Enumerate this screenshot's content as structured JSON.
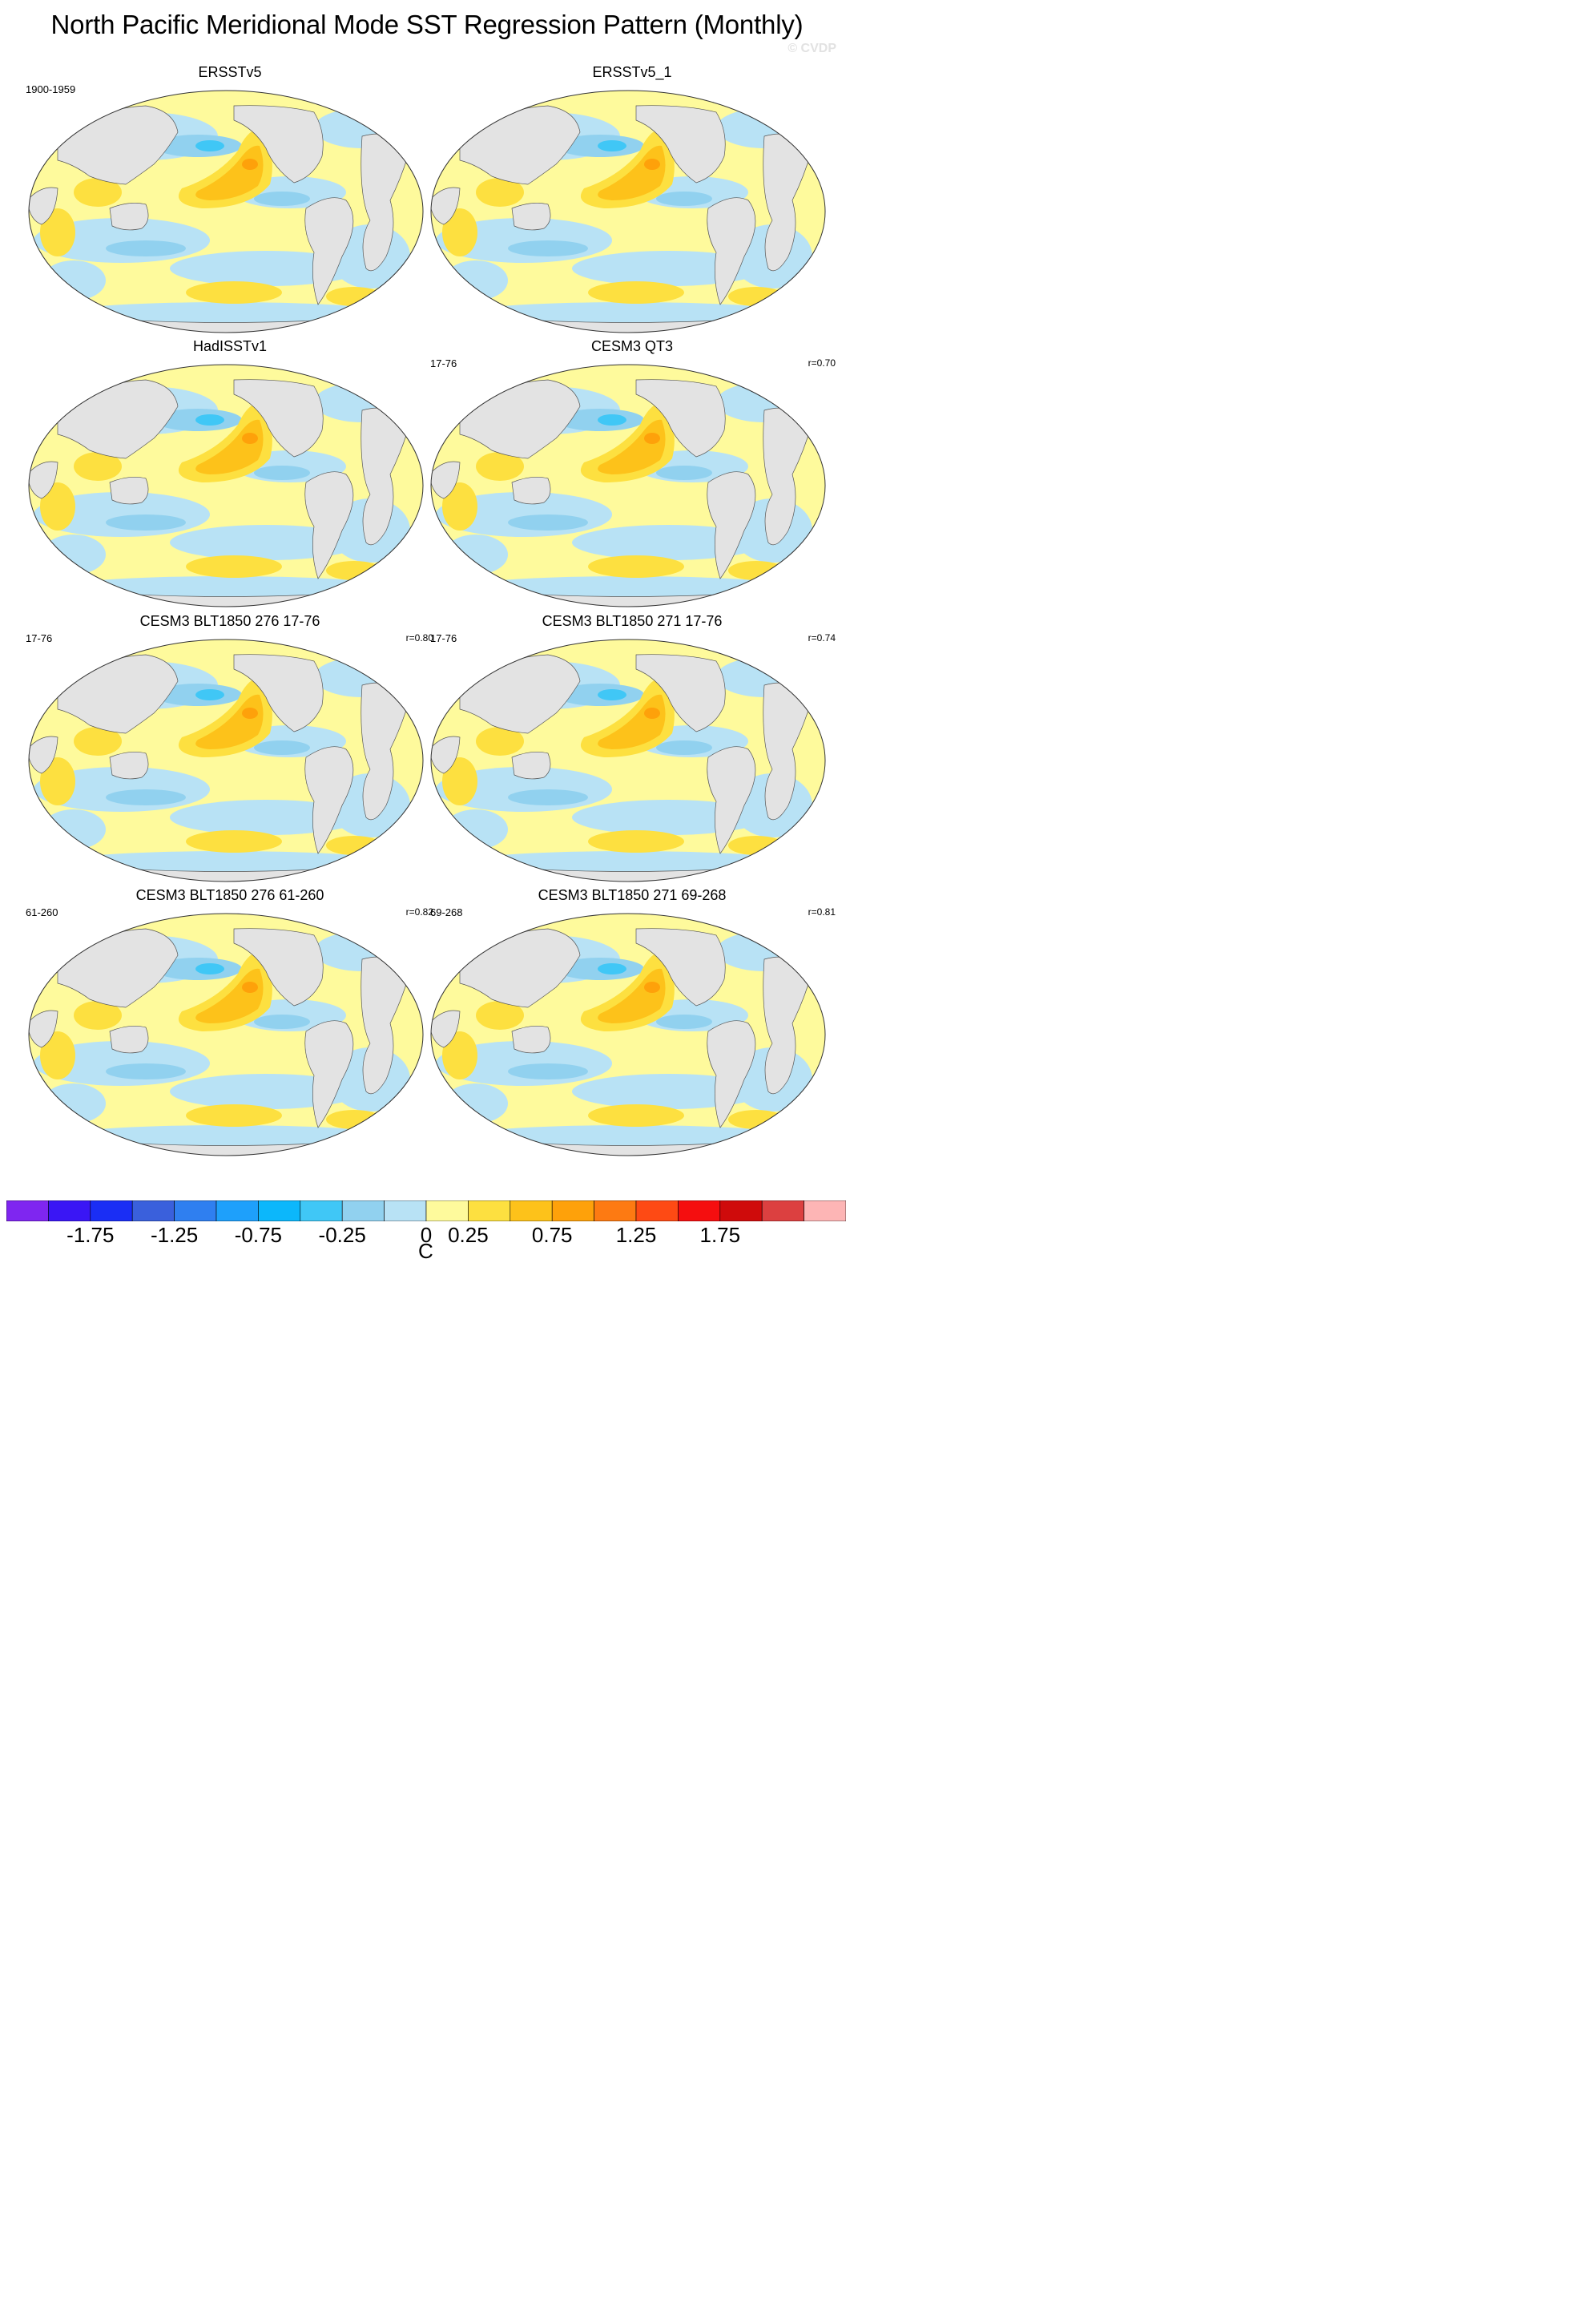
{
  "title": "North Pacific Meridional Mode SST Regression Pattern (Monthly)",
  "credit": "© CVDP",
  "panels": [
    {
      "title": "ERSSTv5",
      "period": "1900-1959",
      "corr": ""
    },
    {
      "title": "ERSSTv5_1",
      "period": "",
      "corr": ""
    },
    {
      "title": "HadISSTv1",
      "period": "",
      "corr": ""
    },
    {
      "title": "CESM3 QT3",
      "period": "17-76",
      "corr": "r=0.70"
    },
    {
      "title": "CESM3 BLT1850 276 17-76",
      "period": "17-76",
      "corr": "r=0.80"
    },
    {
      "title": "CESM3 BLT1850 271 17-76",
      "period": "17-76",
      "corr": "r=0.74"
    },
    {
      "title": "CESM3 BLT1850 276 61-260",
      "period": "61-260",
      "corr": "r=0.82"
    },
    {
      "title": "CESM3 BLT1850 271 69-268",
      "period": "69-268",
      "corr": "r=0.81"
    }
  ],
  "colorbar": {
    "colors": [
      "#7f26f0",
      "#3a16f5",
      "#1a2ef5",
      "#3a60dc",
      "#2f7ff0",
      "#1ea0fb",
      "#0cb7fb",
      "#40c7f6",
      "#91d1ef",
      "#b8e2f5",
      "#fefa9c",
      "#fde040",
      "#fdc21a",
      "#fea10a",
      "#fd7a12",
      "#fe4a14",
      "#f50e0f",
      "#cf0b0b",
      "#dc4040",
      "#fdb5b5"
    ],
    "labels": [
      "-1.75",
      "-1.25",
      "-0.75",
      "-0.25",
      "0",
      "0.25",
      "0.75",
      "1.25",
      "1.75"
    ],
    "unit": "C"
  }
}
